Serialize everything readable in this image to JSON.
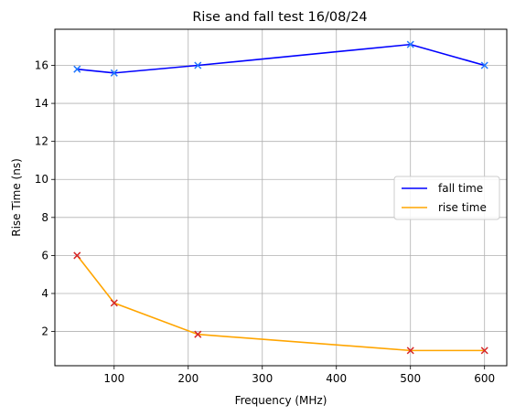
{
  "chart_data": {
    "type": "line",
    "title": "Rise and fall test 16/08/24",
    "xlabel": "Frequency (MHz)",
    "ylabel": "Rise Time (ns)",
    "xlim": [
      20,
      630
    ],
    "ylim": [
      0.2,
      17.9
    ],
    "xticks": [
      100,
      200,
      300,
      400,
      500,
      600
    ],
    "yticks": [
      2,
      4,
      6,
      8,
      10,
      12,
      14,
      16
    ],
    "grid": true,
    "legend_position": "center-right",
    "series": [
      {
        "name": "fall time",
        "color": "#0000ff",
        "marker_color": "#1f77ff",
        "x": [
          50,
          100,
          213,
          500,
          600
        ],
        "y": [
          15.8,
          15.6,
          16.0,
          17.1,
          16.0
        ]
      },
      {
        "name": "rise time",
        "color": "#ffa500",
        "marker_color": "#d62728",
        "x": [
          50,
          100,
          213,
          500,
          600
        ],
        "y": [
          6.0,
          3.5,
          1.85,
          1.0,
          1.0
        ]
      }
    ]
  }
}
